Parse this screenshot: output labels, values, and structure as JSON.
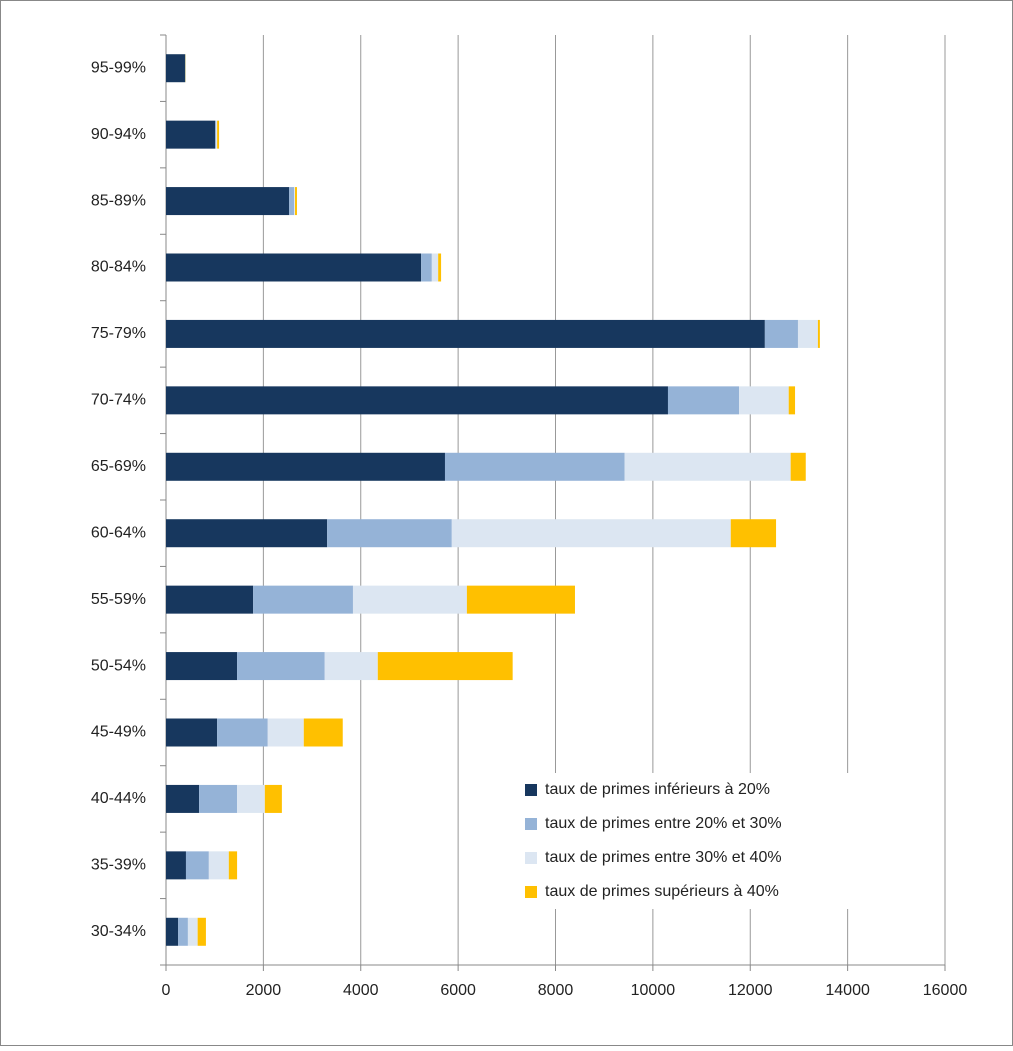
{
  "chart_data": {
    "type": "bar",
    "orientation": "horizontal",
    "stacked": true,
    "categories": [
      "30-34%",
      "35-39%",
      "40-44%",
      "45-49%",
      "50-54%",
      "55-59%",
      "60-64%",
      "65-69%",
      "70-74%",
      "75-79%",
      "80-84%",
      "85-89%",
      "90-94%",
      "95-99%"
    ],
    "series": [
      {
        "name": "taux de primes inférieurs à 20%",
        "color": "#17375e",
        "values": [
          250,
          410,
          680,
          1050,
          1460,
          1790,
          3310,
          5730,
          10310,
          12300,
          5240,
          2530,
          1010,
          390
        ]
      },
      {
        "name": "taux de primes entre 20% et 30%",
        "color": "#95b3d7",
        "values": [
          200,
          470,
          780,
          1040,
          1800,
          2050,
          2560,
          3690,
          1460,
          680,
          220,
          100,
          20,
          10
        ]
      },
      {
        "name": "taux de primes entre 30% et 40%",
        "color": "#dce6f2",
        "values": [
          200,
          410,
          570,
          740,
          1090,
          2340,
          5730,
          3410,
          1020,
          410,
          130,
          20,
          20,
          5
        ]
      },
      {
        "name": "taux de primes supérieurs à 40%",
        "color": "#ffc000",
        "values": [
          170,
          170,
          350,
          800,
          2770,
          2220,
          930,
          310,
          130,
          40,
          60,
          40,
          40,
          5
        ]
      }
    ],
    "xlim": [
      0,
      16000
    ],
    "xticks": [
      0,
      2000,
      4000,
      6000,
      8000,
      10000,
      12000,
      14000,
      16000
    ],
    "grid": true
  }
}
